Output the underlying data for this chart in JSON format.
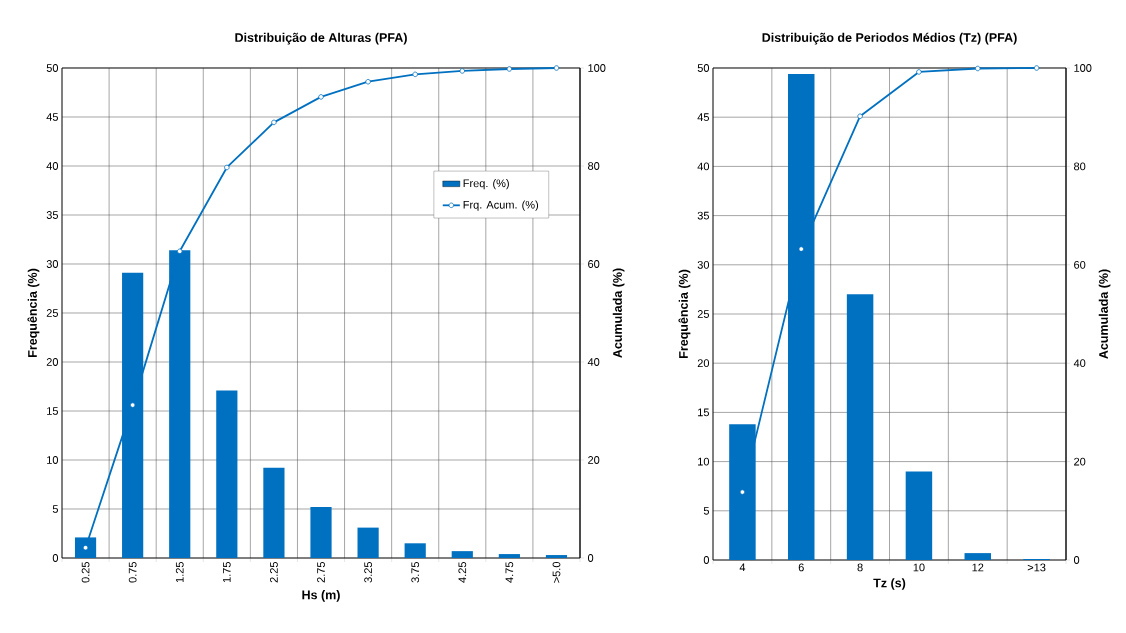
{
  "chart_data": [
    {
      "type": "bar",
      "title": "Distribuição de Alturas (PFA)",
      "xlabel": "Hs (m)",
      "ylabel": "Frequência (%)",
      "y2label": "Acumulada  (%)",
      "categories": [
        "0.25",
        "0.75",
        "1.25",
        "1.75",
        "2.25",
        "2.75",
        "3.25",
        "3.75",
        "4.25",
        "4.75",
        ">5.0"
      ],
      "series": [
        {
          "name": "Freq. (%)",
          "color": "#0070c0",
          "values": [
            2.1,
            29.1,
            31.4,
            17.1,
            9.2,
            5.2,
            3.1,
            1.5,
            0.7,
            0.4,
            0.3
          ]
        },
        {
          "name": "Frq. Acum. (%)",
          "type": "line",
          "axis": "y2",
          "color": "#0070c0",
          "marker": "circle",
          "values": [
            2.1,
            31.2,
            62.6,
            79.7,
            88.9,
            94.1,
            97.2,
            98.7,
            99.4,
            99.8,
            100
          ]
        }
      ],
      "ylim": [
        0,
        50
      ],
      "yticks": [
        0,
        5,
        10,
        15,
        20,
        25,
        30,
        35,
        40,
        45,
        50
      ],
      "y2lim": [
        0,
        100
      ],
      "y2ticks": [
        0,
        20,
        40,
        60,
        80,
        100
      ],
      "grid": true,
      "legend": "right"
    },
    {
      "type": "bar",
      "title": "Distribuição de Periodos Médios (Tz)  (PFA)",
      "xlabel": "Tz (s)",
      "ylabel": "Frequência (%)",
      "y2label": "Acumulada  (%)",
      "categories": [
        "4",
        "6",
        "8",
        "10",
        "12",
        ">13"
      ],
      "series": [
        {
          "color": "#0070c0",
          "values": [
            13.8,
            49.4,
            27.0,
            9.0,
            0.7,
            0.1
          ]
        },
        {
          "type": "line",
          "axis": "y2",
          "color": "#0070c0",
          "marker": "circle",
          "values": [
            13.8,
            63.2,
            90.2,
            99.2,
            99.9,
            100
          ]
        }
      ],
      "ylim": [
        0,
        50
      ],
      "yticks": [
        0,
        5,
        10,
        15,
        20,
        25,
        30,
        35,
        40,
        45,
        50
      ],
      "y2lim": [
        0,
        100
      ],
      "y2ticks": [
        0,
        20,
        40,
        60,
        80,
        100
      ],
      "grid": true
    }
  ]
}
